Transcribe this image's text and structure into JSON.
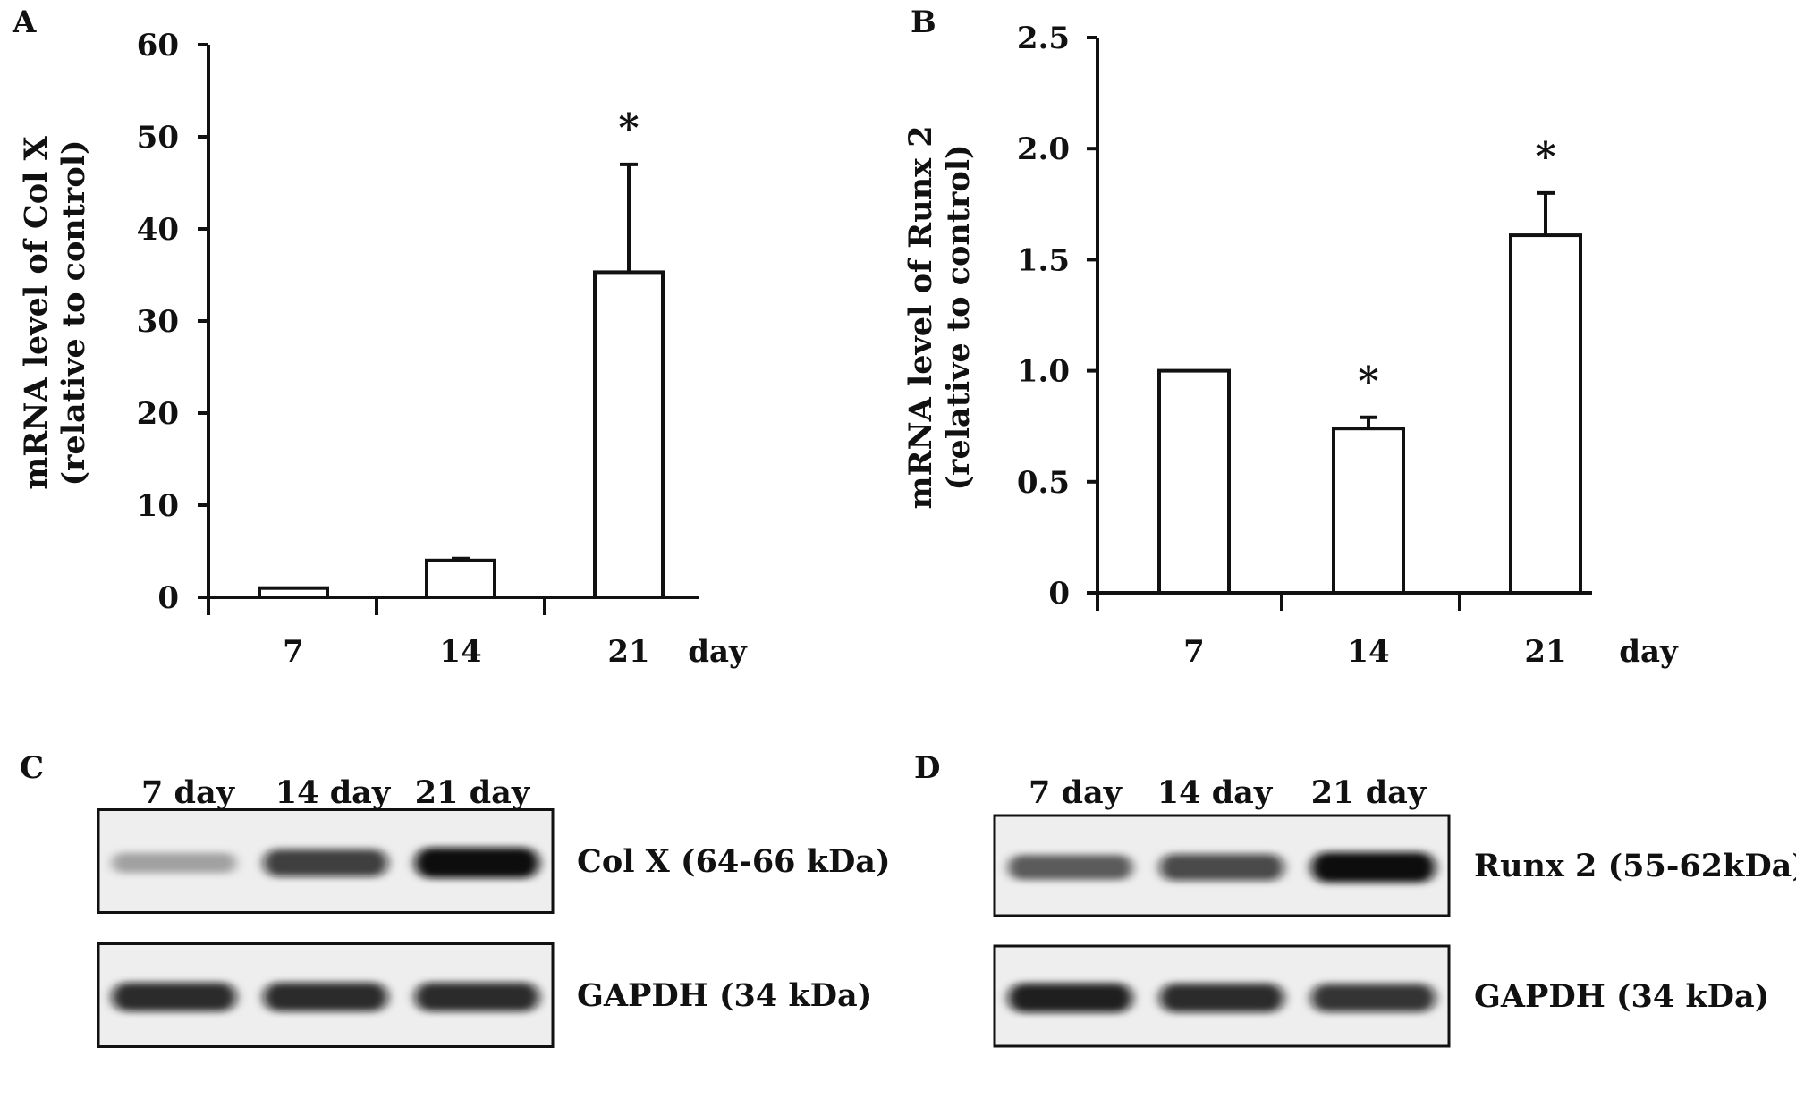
{
  "chart_data": [
    {
      "panel": "A",
      "type": "bar",
      "categories": [
        "7",
        "14",
        "21"
      ],
      "x_unit": "day",
      "values": [
        1.0,
        4.0,
        35.3
      ],
      "error_upper": [
        1.0,
        4.2,
        47.0
      ],
      "significance": [
        "",
        "",
        "*"
      ],
      "ylabel": [
        "mRNA level of Col X",
        "(relative to control)"
      ],
      "ylim": [
        0,
        60
      ],
      "yticks": [
        "0",
        "10",
        "20",
        "30",
        "40",
        "50",
        "60"
      ],
      "grid": false,
      "legend": "none"
    },
    {
      "panel": "B",
      "type": "bar",
      "categories": [
        "7",
        "14",
        "21"
      ],
      "x_unit": "day",
      "values": [
        1.0,
        0.74,
        1.61
      ],
      "error_upper": [
        1.0,
        0.79,
        1.8
      ],
      "significance": [
        "",
        "*",
        "*"
      ],
      "ylabel": [
        "mRNA level of Runx 2",
        "(relative to control)"
      ],
      "ylim": [
        0,
        2.5
      ],
      "yticks": [
        "0",
        "0.5",
        "1.0",
        "1.5",
        "2.0",
        "2.5"
      ],
      "grid": false,
      "legend": "none"
    }
  ],
  "blots": [
    {
      "panel": "C",
      "lanes": [
        "7 day",
        "14 day",
        "21 day"
      ],
      "rows": [
        {
          "label": "Col X (64-66 kDa)",
          "intensity": [
            0.2,
            0.75,
            1.0
          ]
        },
        {
          "label": "GAPDH (34 kDa)",
          "intensity": [
            0.85,
            0.85,
            0.85
          ]
        }
      ]
    },
    {
      "panel": "D",
      "lanes": [
        "7 day",
        "14 day",
        "21 day"
      ],
      "rows": [
        {
          "label": "Runx 2 (55-62kDa)",
          "intensity": [
            0.55,
            0.7,
            1.0
          ]
        },
        {
          "label": "GAPDH (34 kDa)",
          "intensity": [
            0.9,
            0.85,
            0.8
          ]
        }
      ]
    }
  ],
  "colors": {
    "ink": "#111111",
    "bar_fill": "#ffffff",
    "blot_bg": "#eeeeee"
  }
}
